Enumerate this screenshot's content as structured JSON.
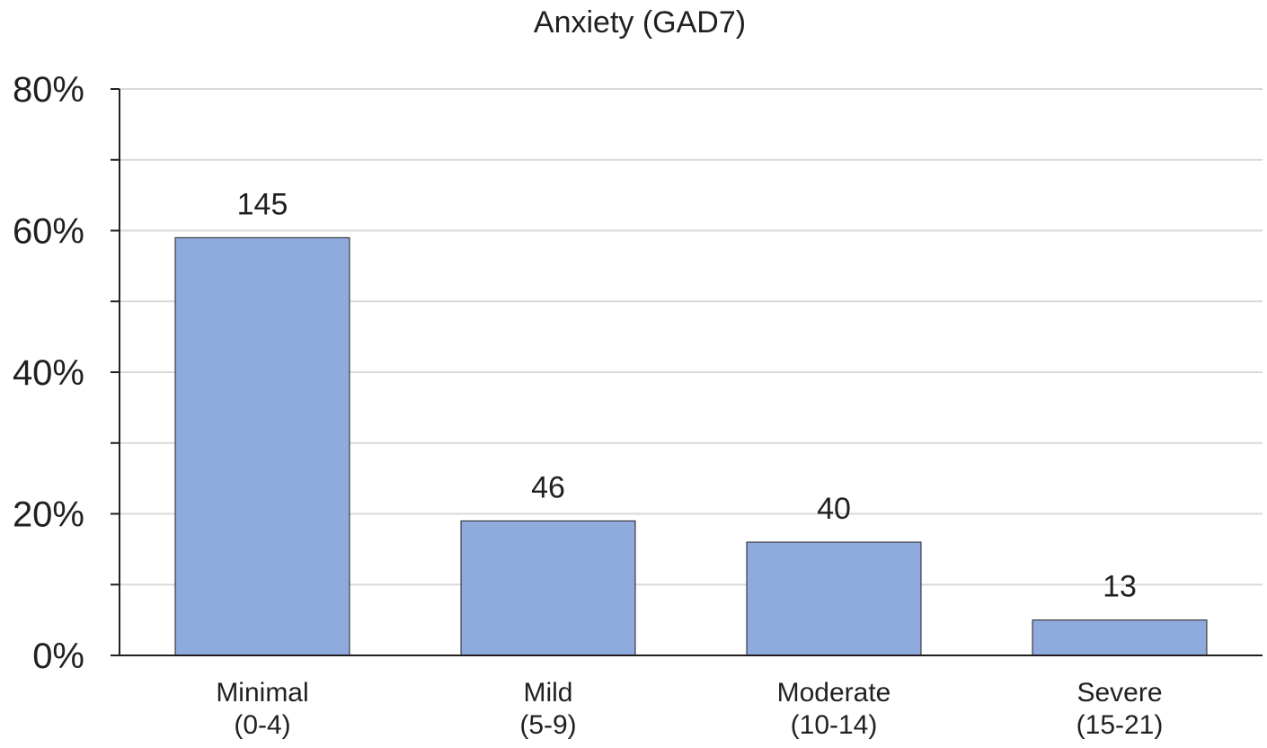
{
  "chart_data": {
    "type": "bar",
    "title": "Anxiety (GAD7)",
    "xlabel": "",
    "ylabel": "",
    "ylim": [
      0,
      80
    ],
    "yticks": [
      0,
      20,
      40,
      60,
      80
    ],
    "ytick_labels": [
      "0%",
      "20%",
      "40%",
      "60%",
      "80%"
    ],
    "categories": [
      [
        "Minimal",
        "(0-4)"
      ],
      [
        "Mild",
        "(5-9)"
      ],
      [
        "Moderate",
        "(10-14)"
      ],
      [
        "Severe",
        "(15-21)"
      ]
    ],
    "values": [
      59,
      19,
      16,
      5
    ],
    "data_labels": [
      "145",
      "46",
      "40",
      "13"
    ],
    "grid": true,
    "legend": "none",
    "colors": {
      "bar_fill": "#8faadc",
      "bar_stroke": "#231f20",
      "gridline": "#d9d9d9",
      "axis": "#231f20"
    }
  }
}
